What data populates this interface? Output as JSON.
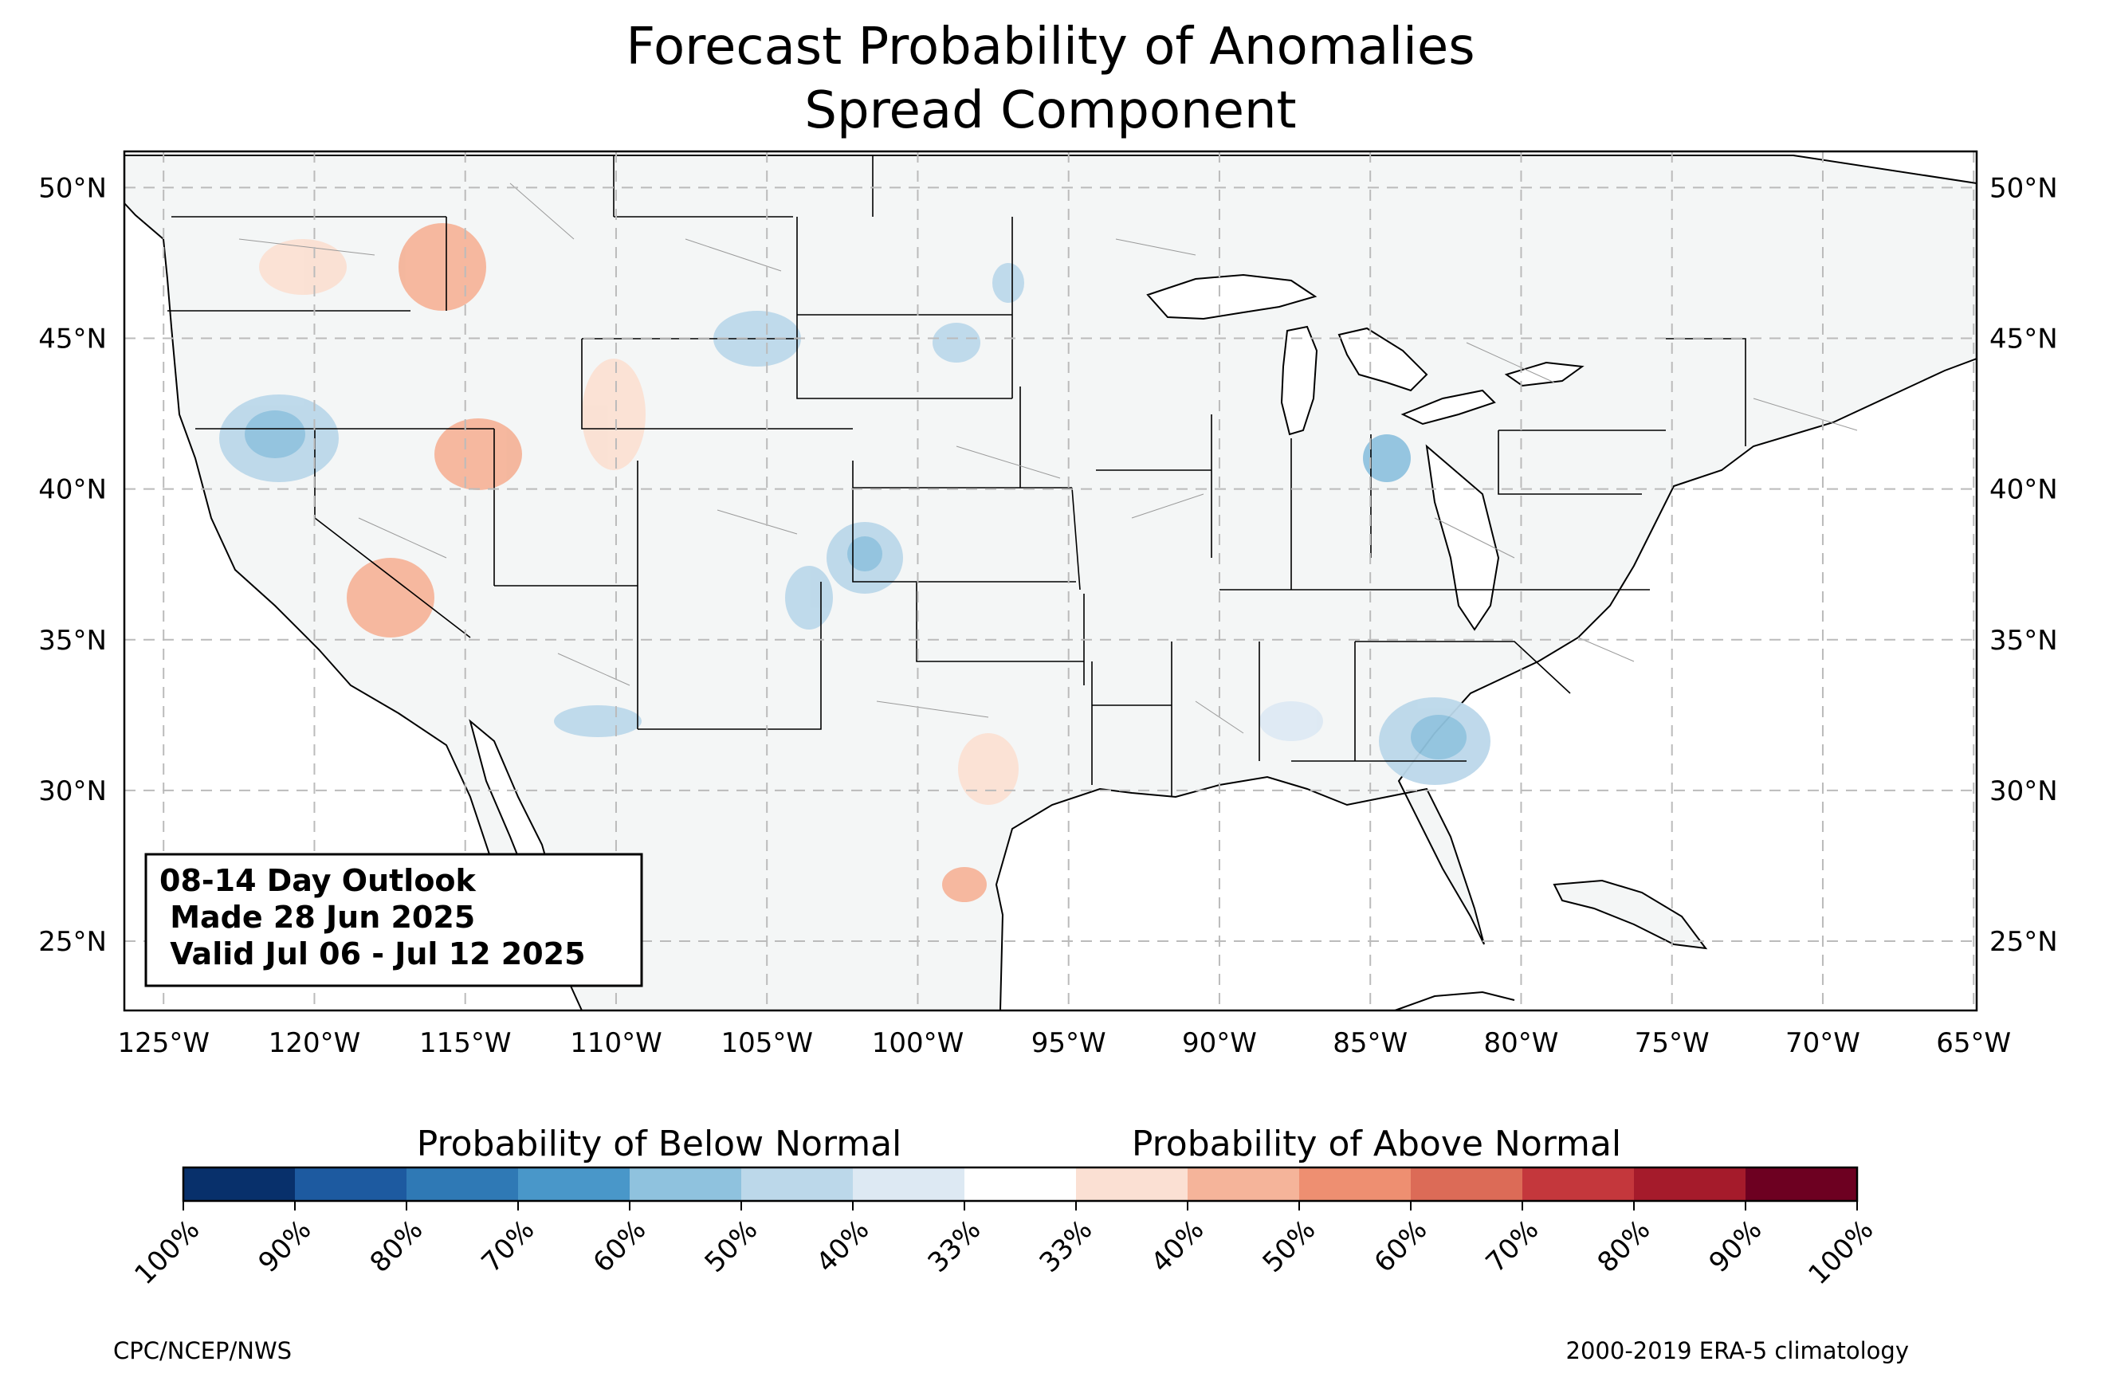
{
  "title": {
    "line1": "Forecast Probability of Anomalies",
    "line2": "Spread Component"
  },
  "info_box": {
    "line1": "08-14 Day Outlook",
    "line2": " Made 28 Jun 2025",
    "line3": " Valid Jul 06 - Jul 12 2025"
  },
  "map": {
    "lon_range": [
      -126.3,
      -64.9
    ],
    "lat_range": [
      22.7,
      51.2
    ],
    "lon_ticks": [
      "125°W",
      "120°W",
      "115°W",
      "110°W",
      "105°W",
      "100°W",
      "95°W",
      "90°W",
      "85°W",
      "80°W",
      "75°W",
      "70°W",
      "65°W"
    ],
    "lat_ticks": [
      "25°N",
      "30°N",
      "35°N",
      "40°N",
      "45°N",
      "50°N"
    ],
    "gridlines": true
  },
  "colorbar": {
    "below_title": "Probability of Below Normal",
    "above_title": "Probability of Above Normal",
    "labels": [
      "100%",
      "90%",
      "80%",
      "70%",
      "60%",
      "50%",
      "40%",
      "33%",
      "33%",
      "40%",
      "50%",
      "60%",
      "70%",
      "80%",
      "90%",
      "100%"
    ],
    "colors": [
      "#08306b",
      "#1d5aa0",
      "#2f79b5",
      "#4997c9",
      "#8fc2de",
      "#bcd8ea",
      "#dde9f3",
      "#ffffff",
      "#fbe0d3",
      "#f5b49a",
      "#ee8f71",
      "#dc6b57",
      "#c4373c",
      "#a51b2b",
      "#6d0021"
    ]
  },
  "footer": {
    "left": "CPC/NCEP/NWS",
    "right": "2000-2019 ERA-5 climatology"
  },
  "colors": {
    "land": "#f4f6f6",
    "ocean": "#ffffff",
    "below_light": "#dde9f3",
    "below_mid": "#bcd8ea",
    "below_dark": "#8fc2de",
    "above_light": "#fbe0d3",
    "above_mid": "#f5b49a"
  }
}
